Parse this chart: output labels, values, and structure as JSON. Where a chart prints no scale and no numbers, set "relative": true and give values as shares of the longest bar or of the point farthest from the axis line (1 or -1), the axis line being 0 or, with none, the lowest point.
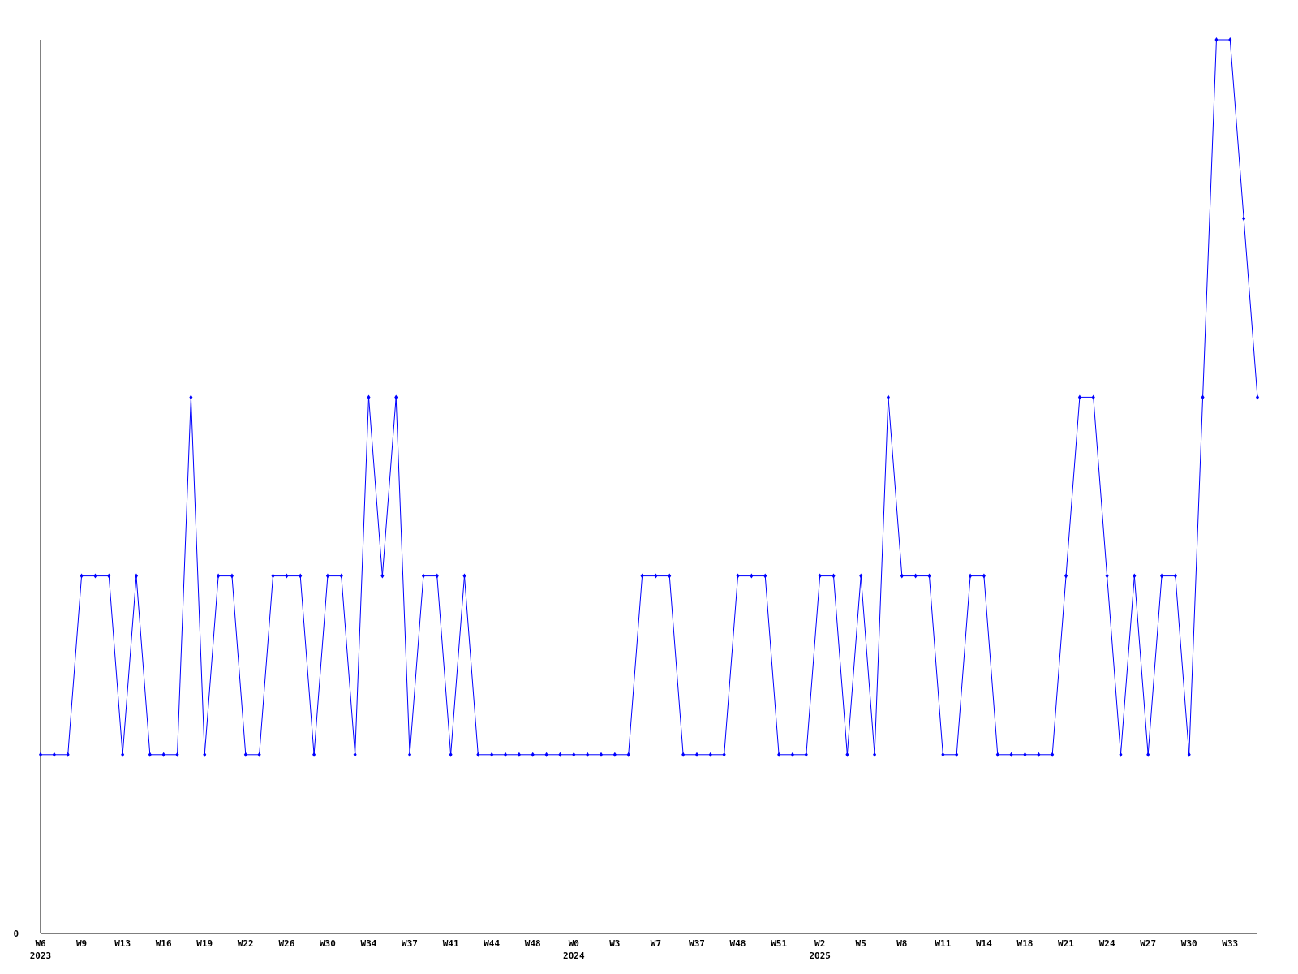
{
  "chart_data": {
    "type": "line",
    "relative": true,
    "color": "#0000ff",
    "marker": "diamond",
    "categories": [
      "W6\n2023",
      null,
      null,
      "W9",
      null,
      null,
      "W13",
      null,
      null,
      "W16",
      null,
      null,
      "W19",
      null,
      null,
      "W22",
      null,
      null,
      "W26",
      null,
      null,
      "W30",
      null,
      null,
      "W34",
      null,
      null,
      "W37",
      null,
      null,
      "W41",
      null,
      null,
      "W44",
      null,
      null,
      "W48",
      null,
      null,
      "W0\n2024",
      null,
      null,
      "W3",
      null,
      null,
      "W7",
      null,
      null,
      "W37",
      null,
      null,
      "W48",
      null,
      null,
      "W51",
      null,
      null,
      "W2\n2025",
      null,
      null,
      "W5",
      null,
      null,
      "W8",
      null,
      null,
      "W11",
      null,
      null,
      "W14",
      null,
      null,
      "W18",
      null,
      null,
      "W21",
      null,
      null,
      "W24",
      null,
      null,
      "W27",
      null,
      null,
      "W30",
      null,
      null,
      "W33",
      null,
      null
    ],
    "values": [
      0.2,
      0.2,
      0.2,
      0.4,
      0.4,
      0.4,
      0.2,
      0.4,
      0.2,
      0.2,
      0.2,
      0.6,
      0.2,
      0.4,
      0.4,
      0.2,
      0.2,
      0.4,
      0.4,
      0.4,
      0.2,
      0.4,
      0.4,
      0.2,
      0.6,
      0.4,
      0.6,
      0.2,
      0.4,
      0.4,
      0.2,
      0.4,
      0.2,
      0.2,
      0.2,
      0.2,
      0.2,
      0.2,
      0.2,
      0.2,
      0.2,
      0.2,
      0.2,
      0.2,
      0.4,
      0.4,
      0.4,
      0.2,
      0.2,
      0.2,
      0.2,
      0.4,
      0.4,
      0.4,
      0.2,
      0.2,
      0.2,
      0.4,
      0.4,
      0.2,
      0.4,
      0.2,
      0.6,
      0.4,
      0.4,
      0.4,
      0.2,
      0.2,
      0.4,
      0.4,
      0.2,
      0.2,
      0.2,
      0.2,
      0.2,
      0.4,
      0.6,
      0.6,
      0.4,
      0.2,
      0.4,
      0.2,
      0.4,
      0.4,
      0.2,
      0.6,
      1,
      1,
      0.8,
      0.6
    ],
    "annotations": [
      "0"
    ]
  }
}
